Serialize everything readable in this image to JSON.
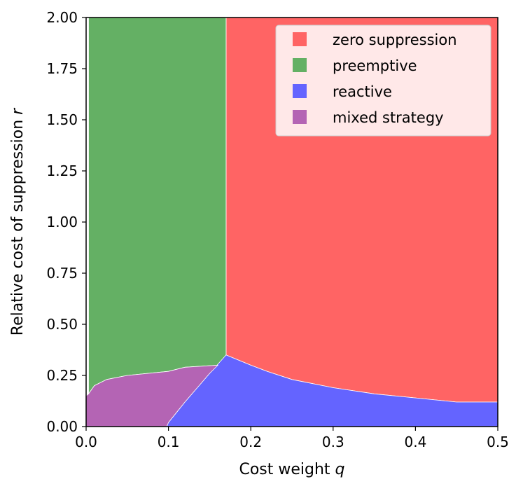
{
  "chart_data": {
    "type": "area",
    "xlabel": "Cost weight q",
    "ylabel": "Relative cost of suppression r",
    "xlim": [
      0.0,
      0.5
    ],
    "ylim": [
      0.0,
      2.0
    ],
    "x_ticks": [
      "0.0",
      "0.1",
      "0.2",
      "0.3",
      "0.4",
      "0.5"
    ],
    "y_ticks": [
      "0.00",
      "0.25",
      "0.50",
      "0.75",
      "1.00",
      "1.25",
      "1.50",
      "1.75",
      "2.00"
    ],
    "legend_position": "top-right",
    "grid": false,
    "regions": [
      {
        "name": "zero suppression",
        "color": "#ff6464",
        "polygon": [
          [
            0.17,
            0.35
          ],
          [
            0.17,
            2.0
          ],
          [
            0.5,
            2.0
          ],
          [
            0.5,
            0.12
          ],
          [
            0.45,
            0.12
          ],
          [
            0.4,
            0.14
          ],
          [
            0.35,
            0.16
          ],
          [
            0.3,
            0.19
          ],
          [
            0.25,
            0.23
          ],
          [
            0.22,
            0.27
          ],
          [
            0.2,
            0.3
          ]
        ]
      },
      {
        "name": "preemptive",
        "color": "#64b064",
        "polygon": [
          [
            0.003,
            0.16
          ],
          [
            0.003,
            2.0
          ],
          [
            0.17,
            2.0
          ],
          [
            0.17,
            0.35
          ],
          [
            0.16,
            0.3
          ],
          [
            0.12,
            0.29
          ],
          [
            0.1,
            0.27
          ],
          [
            0.05,
            0.25
          ],
          [
            0.025,
            0.23
          ],
          [
            0.01,
            0.2
          ]
        ]
      },
      {
        "name": "reactive",
        "color": "#6464ff",
        "polygon": [
          [
            0.098,
            0.0
          ],
          [
            0.5,
            0.0
          ],
          [
            0.5,
            0.12
          ],
          [
            0.45,
            0.12
          ],
          [
            0.4,
            0.14
          ],
          [
            0.35,
            0.16
          ],
          [
            0.3,
            0.19
          ],
          [
            0.25,
            0.23
          ],
          [
            0.22,
            0.27
          ],
          [
            0.2,
            0.3
          ],
          [
            0.17,
            0.35
          ],
          [
            0.15,
            0.26
          ],
          [
            0.12,
            0.12
          ],
          [
            0.1,
            0.02
          ]
        ]
      },
      {
        "name": "mixed strategy",
        "color": "#b464b4",
        "polygon": [
          [
            0.0,
            0.0
          ],
          [
            0.098,
            0.0
          ],
          [
            0.1,
            0.02
          ],
          [
            0.12,
            0.12
          ],
          [
            0.15,
            0.26
          ],
          [
            0.16,
            0.3
          ],
          [
            0.12,
            0.29
          ],
          [
            0.1,
            0.27
          ],
          [
            0.05,
            0.25
          ],
          [
            0.025,
            0.23
          ],
          [
            0.01,
            0.2
          ],
          [
            0.003,
            0.16
          ],
          [
            0.0,
            0.15
          ]
        ]
      }
    ],
    "legend": [
      "zero suppression",
      "preemptive",
      "reactive",
      "mixed strategy"
    ]
  }
}
